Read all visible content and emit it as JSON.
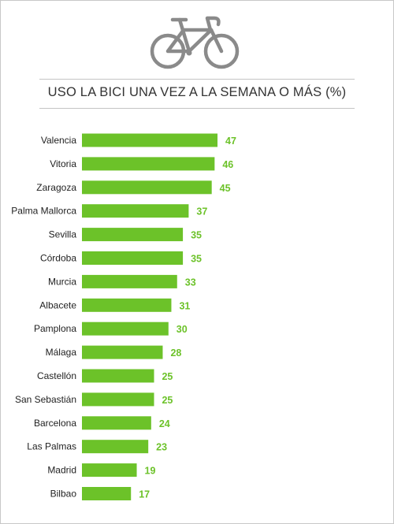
{
  "title": "USO LA BICI UNA VEZ A LA SEMANA O MÁS (%)",
  "icon": "bicycle-icon",
  "colors": {
    "bar": "#6cc229",
    "value_text": "#6cc229",
    "icon": "#8a8a8a"
  },
  "chart_data": {
    "type": "bar",
    "orientation": "horizontal",
    "title": "USO LA BICI UNA VEZ A LA SEMANA O MÁS (%)",
    "categories": [
      "Valencia",
      "Vitoria",
      "Zaragoza",
      "Palma Mallorca",
      "Sevilla",
      "Córdoba",
      "Murcia",
      "Albacete",
      "Pamplona",
      "Málaga",
      "Castellón",
      "San Sebastián",
      "Barcelona",
      "Las Palmas",
      "Madrid",
      "Bilbao"
    ],
    "values": [
      47,
      46,
      45,
      37,
      35,
      35,
      33,
      31,
      30,
      28,
      25,
      25,
      24,
      23,
      19,
      17
    ],
    "xlim": [
      0,
      47
    ],
    "grid": false,
    "legend": "none"
  }
}
